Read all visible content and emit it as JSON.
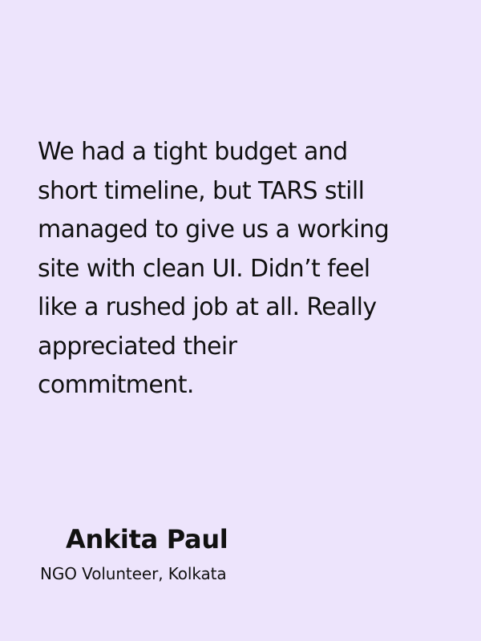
{
  "testimonial": {
    "quote": "We had a tight budget and\nshort timeline, but TARS still\nmanaged to give us a working\nsite with clean UI. Didn’t feel\nlike a rushed job at all. Really\nappreciated their\ncommitment.",
    "author": {
      "name": "Ankita Paul",
      "role": "NGO Volunteer, Kolkata"
    }
  },
  "colors": {
    "background": "#ede4fc",
    "text": "#111111"
  }
}
